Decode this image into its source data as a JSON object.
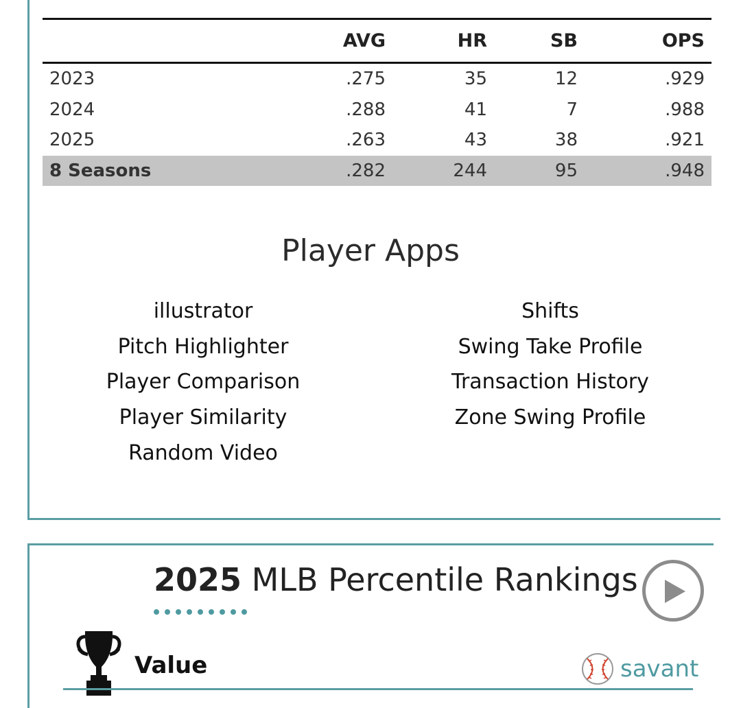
{
  "stats": {
    "headers": {
      "season": "",
      "avg": "AVG",
      "hr": "HR",
      "sb": "SB",
      "ops": "OPS"
    },
    "rows": [
      {
        "season": "2023",
        "avg": ".275",
        "hr": "35",
        "sb": "12",
        "ops": ".929"
      },
      {
        "season": "2024",
        "avg": ".288",
        "hr": "41",
        "sb": "7",
        "ops": ".988"
      },
      {
        "season": "2025",
        "avg": ".263",
        "hr": "43",
        "sb": "38",
        "ops": ".921"
      }
    ],
    "total": {
      "season": "8 Seasons",
      "avg": ".282",
      "hr": "244",
      "sb": "95",
      "ops": ".948"
    }
  },
  "player_apps": {
    "title": "Player Apps",
    "left": [
      "illustrator",
      "Pitch Highlighter",
      "Player Comparison",
      "Player Similarity",
      "Random Video"
    ],
    "right": [
      "Shifts",
      "Swing Take Profile",
      "Transaction History",
      "Zone Swing Profile"
    ]
  },
  "percentile": {
    "year": "2025",
    "title_rest": " MLB Percentile Rankings",
    "section_label": "Value",
    "logo_text": "savant"
  },
  "colors": {
    "accent": "#5a9ea3",
    "total_row_bg": "#c4c4c4"
  },
  "icons": {
    "play": "play-icon",
    "trophy": "trophy-icon",
    "baseball": "baseball-icon"
  }
}
